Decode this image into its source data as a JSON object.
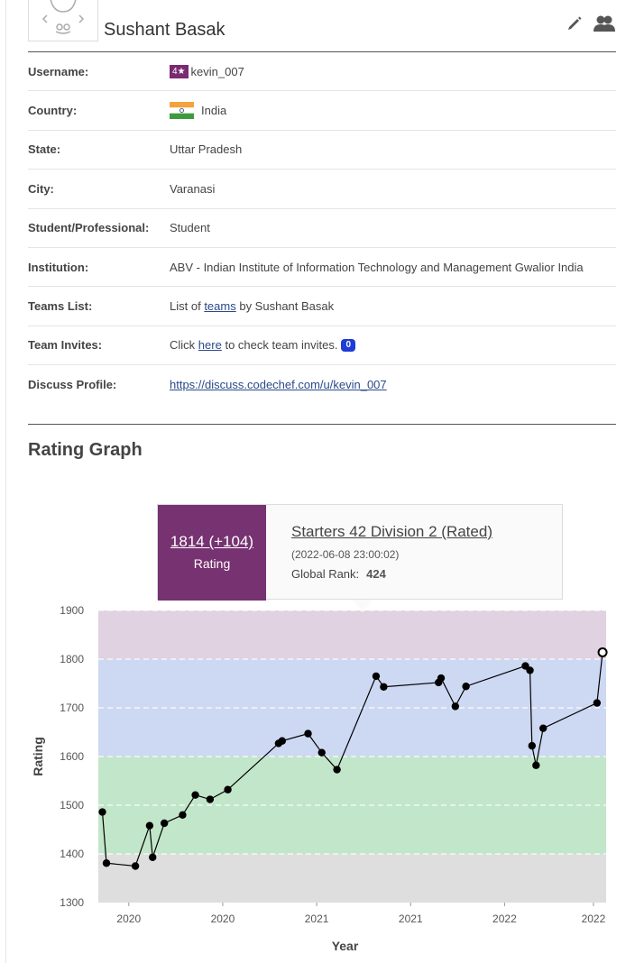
{
  "profile": {
    "name": "Sushant Basak",
    "rows": [
      {
        "label": "Username:",
        "badge": "4★",
        "value": "kevin_007"
      },
      {
        "label": "Country:",
        "value": "India"
      },
      {
        "label": "State:",
        "value": "Uttar Pradesh"
      },
      {
        "label": "City:",
        "value": "Varanasi"
      },
      {
        "label": "Student/Professional:",
        "value": "Student"
      },
      {
        "label": "Institution:",
        "value": "ABV - Indian Institute of Information Technology and Management Gwalior India"
      },
      {
        "label": "Teams List:",
        "prefix": "List of",
        "link": "teams",
        "suffix": "by Sushant Basak"
      },
      {
        "label": "Team Invites:",
        "prefix": "Click",
        "link": "here",
        "suffix": "to check team invites.",
        "count": "0"
      },
      {
        "label": "Discuss Profile:",
        "link": "https://discuss.codechef.com/u/kevin_007"
      }
    ]
  },
  "graph_title": "Rating Graph",
  "tooltip": {
    "rating": "1814 (+104)",
    "rating_label": "Rating",
    "contest": "Starters 42 Division 2 (Rated)",
    "date": "(2022-06-08 23:00:02)",
    "rank_label": "Global Rank:",
    "rank": "424"
  },
  "colors": {
    "brand": "#763271",
    "band_1800": "#e0d2e0",
    "band_1600": "#cdd8f2",
    "band_1400": "#c2e6c9",
    "band_low": "#dedede"
  },
  "chart_data": {
    "type": "line",
    "xlabel": "Year",
    "ylabel": "Rating",
    "ylim": [
      1300,
      1900
    ],
    "yticks": [
      1300,
      1400,
      1500,
      1600,
      1700,
      1800,
      1900
    ],
    "xtick_labels": [
      "2020",
      "2020",
      "2021",
      "2021",
      "2022",
      "2022"
    ],
    "xtick_pos": [
      0.06,
      0.245,
      0.43,
      0.615,
      0.8,
      0.975
    ],
    "grid": true,
    "points": [
      {
        "x": 0.008,
        "y": 1486
      },
      {
        "x": 0.016,
        "y": 1381
      },
      {
        "x": 0.073,
        "y": 1375
      },
      {
        "x": 0.101,
        "y": 1458
      },
      {
        "x": 0.107,
        "y": 1393
      },
      {
        "x": 0.13,
        "y": 1463
      },
      {
        "x": 0.166,
        "y": 1480
      },
      {
        "x": 0.191,
        "y": 1521
      },
      {
        "x": 0.22,
        "y": 1512
      },
      {
        "x": 0.255,
        "y": 1532
      },
      {
        "x": 0.355,
        "y": 1627
      },
      {
        "x": 0.362,
        "y": 1632
      },
      {
        "x": 0.413,
        "y": 1647
      },
      {
        "x": 0.44,
        "y": 1608
      },
      {
        "x": 0.47,
        "y": 1573
      },
      {
        "x": 0.547,
        "y": 1765
      },
      {
        "x": 0.562,
        "y": 1743
      },
      {
        "x": 0.67,
        "y": 1752
      },
      {
        "x": 0.675,
        "y": 1761
      },
      {
        "x": 0.703,
        "y": 1703
      },
      {
        "x": 0.724,
        "y": 1744
      },
      {
        "x": 0.841,
        "y": 1786
      },
      {
        "x": 0.85,
        "y": 1777
      },
      {
        "x": 0.854,
        "y": 1622
      },
      {
        "x": 0.862,
        "y": 1582
      },
      {
        "x": 0.876,
        "y": 1658
      },
      {
        "x": 0.982,
        "y": 1710
      },
      {
        "x": 0.993,
        "y": 1814
      }
    ]
  }
}
